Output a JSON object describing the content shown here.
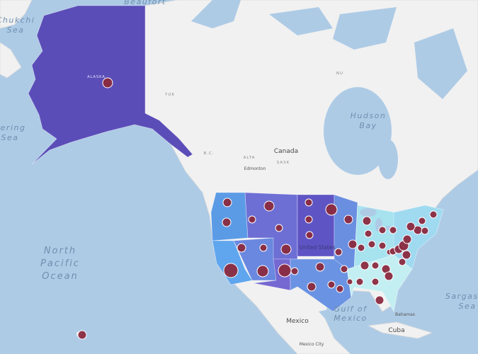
{
  "map": {
    "labels": {
      "beaufort": "Beaufort",
      "chukchi": [
        "Chukchi",
        "Sea"
      ],
      "bering": [
        "Bering",
        "Sea"
      ],
      "pacific": [
        "North",
        "Pacific",
        "Ocean"
      ],
      "hudson": [
        "Hudson",
        "Bay"
      ],
      "canada": "Canada",
      "edmonton": "Edmonton",
      "alaska": "ALASKA",
      "yuk": "YUK",
      "nu": "NU",
      "bc": "B.C.",
      "alta": "ALTA",
      "sask": "SASK",
      "united_states": "United States",
      "gulf": [
        "Gulf of",
        "Mexico"
      ],
      "mexico": "Mexico",
      "mexico_city": "Mexico City",
      "cuba": "Cuba",
      "bahamas": "Bahamas",
      "sargasso": [
        "Sargasso",
        "Sea"
      ]
    }
  }
}
